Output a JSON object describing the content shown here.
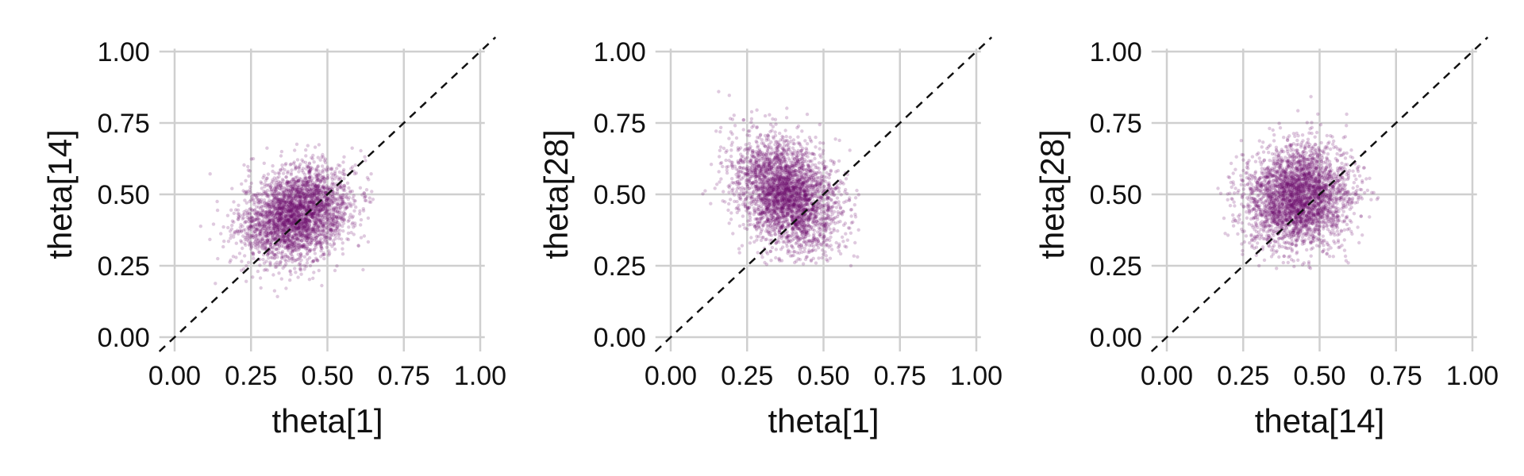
{
  "colors": {
    "points": "#6e0f6e",
    "grid": "#cfcfcf",
    "identity_line": "#111111",
    "text": "#111111"
  },
  "chart_data": [
    {
      "type": "scatter",
      "title": "",
      "xlabel": "theta[1]",
      "ylabel": "theta[14]",
      "xlim": [
        0.0,
        1.0
      ],
      "ylim": [
        0.0,
        1.0
      ],
      "xticks": [
        "0.00",
        "0.25",
        "0.50",
        "0.75",
        "1.00"
      ],
      "yticks": [
        "0.00",
        "0.25",
        "0.50",
        "0.75",
        "1.00"
      ],
      "grid": true,
      "reference_line": "y = x (dashed)",
      "point_cloud": {
        "approx_points": 3000,
        "center": [
          0.4,
          0.43
        ],
        "spread": [
          0.09,
          0.08
        ],
        "correlation": 0.25,
        "x_range": [
          0.08,
          0.65
        ],
        "y_range": [
          0.13,
          0.78
        ]
      }
    },
    {
      "type": "scatter",
      "title": "",
      "xlabel": "theta[1]",
      "ylabel": "theta[28]",
      "xlim": [
        0.0,
        1.0
      ],
      "ylim": [
        0.0,
        1.0
      ],
      "xticks": [
        "0.00",
        "0.25",
        "0.50",
        "0.75",
        "1.00"
      ],
      "yticks": [
        "0.00",
        "0.25",
        "0.50",
        "0.75",
        "1.00"
      ],
      "grid": true,
      "reference_line": "y = x (dashed)",
      "point_cloud": {
        "approx_points": 3000,
        "center": [
          0.38,
          0.5
        ],
        "spread": [
          0.085,
          0.1
        ],
        "correlation": -0.35,
        "x_range": [
          0.05,
          0.62
        ],
        "y_range": [
          0.25,
          0.86
        ]
      }
    },
    {
      "type": "scatter",
      "title": "",
      "xlabel": "theta[14]",
      "ylabel": "theta[28]",
      "xlim": [
        0.0,
        1.0
      ],
      "ylim": [
        0.0,
        1.0
      ],
      "xticks": [
        "0.00",
        "0.25",
        "0.50",
        "0.75",
        "1.00"
      ],
      "yticks": [
        "0.00",
        "0.25",
        "0.50",
        "0.75",
        "1.00"
      ],
      "grid": true,
      "reference_line": "y = x (dashed)",
      "point_cloud": {
        "approx_points": 3000,
        "center": [
          0.43,
          0.49
        ],
        "spread": [
          0.085,
          0.09
        ],
        "correlation": 0.05,
        "x_range": [
          0.15,
          0.72
        ],
        "y_range": [
          0.24,
          0.86
        ]
      }
    }
  ]
}
